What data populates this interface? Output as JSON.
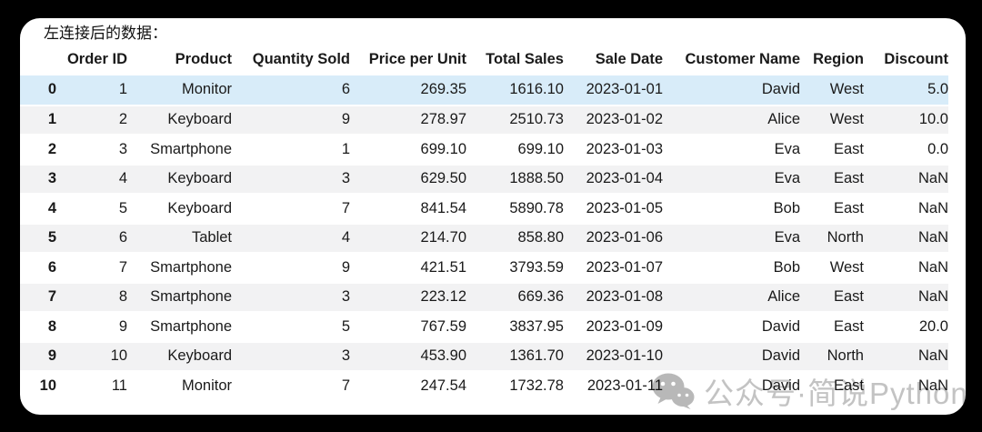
{
  "page": {
    "title": "左连接后的数据："
  },
  "table": {
    "index_label": "",
    "columns": [
      "Order ID",
      "Product",
      "Quantity Sold",
      "Price per Unit",
      "Total Sales",
      "Sale Date",
      "Customer Name",
      "Region",
      "Discount"
    ],
    "rows": [
      {
        "index": "0",
        "highlight": true,
        "cells": [
          "1",
          "Monitor",
          "6",
          "269.35",
          "1616.10",
          "2023-01-01",
          "David",
          "West",
          "5.0"
        ]
      },
      {
        "index": "1",
        "highlight": false,
        "cells": [
          "2",
          "Keyboard",
          "9",
          "278.97",
          "2510.73",
          "2023-01-02",
          "Alice",
          "West",
          "10.0"
        ]
      },
      {
        "index": "2",
        "highlight": false,
        "cells": [
          "3",
          "Smartphone",
          "1",
          "699.10",
          "699.10",
          "2023-01-03",
          "Eva",
          "East",
          "0.0"
        ]
      },
      {
        "index": "3",
        "highlight": false,
        "cells": [
          "4",
          "Keyboard",
          "3",
          "629.50",
          "1888.50",
          "2023-01-04",
          "Eva",
          "East",
          "NaN"
        ]
      },
      {
        "index": "4",
        "highlight": false,
        "cells": [
          "5",
          "Keyboard",
          "7",
          "841.54",
          "5890.78",
          "2023-01-05",
          "Bob",
          "East",
          "NaN"
        ]
      },
      {
        "index": "5",
        "highlight": false,
        "cells": [
          "6",
          "Tablet",
          "4",
          "214.70",
          "858.80",
          "2023-01-06",
          "Eva",
          "North",
          "NaN"
        ]
      },
      {
        "index": "6",
        "highlight": false,
        "cells": [
          "7",
          "Smartphone",
          "9",
          "421.51",
          "3793.59",
          "2023-01-07",
          "Bob",
          "West",
          "NaN"
        ]
      },
      {
        "index": "7",
        "highlight": false,
        "cells": [
          "8",
          "Smartphone",
          "3",
          "223.12",
          "669.36",
          "2023-01-08",
          "Alice",
          "East",
          "NaN"
        ]
      },
      {
        "index": "8",
        "highlight": false,
        "cells": [
          "9",
          "Smartphone",
          "5",
          "767.59",
          "3837.95",
          "2023-01-09",
          "David",
          "East",
          "20.0"
        ]
      },
      {
        "index": "9",
        "highlight": false,
        "cells": [
          "10",
          "Keyboard",
          "3",
          "453.90",
          "1361.70",
          "2023-01-10",
          "David",
          "North",
          "NaN"
        ]
      },
      {
        "index": "10",
        "highlight": false,
        "cells": [
          "11",
          "Monitor",
          "7",
          "247.54",
          "1732.78",
          "2023-01-11",
          "David",
          "East",
          "NaN"
        ]
      }
    ]
  },
  "watermark": {
    "icon": "wechat-icon",
    "text": "公众号·简说Python"
  },
  "colors": {
    "page_bg": "#000000",
    "card_bg": "#ffffff",
    "highlight_row": "#d8ecf9",
    "stripe_row": "#f2f2f3",
    "text": "#1a1a1a",
    "watermark": "#c3c3c3",
    "wechat_icon": "#b8b8b8"
  }
}
